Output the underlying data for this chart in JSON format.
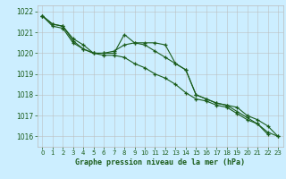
{
  "title": "Graphe pression niveau de la mer (hPa)",
  "bg_color": "#cceeff",
  "grid_color": "#bbbbbb",
  "line_color": "#1a5c1a",
  "xlim": [
    -0.5,
    23.5
  ],
  "ylim": [
    1015.5,
    1022.3
  ],
  "yticks": [
    1016,
    1017,
    1018,
    1019,
    1020,
    1021,
    1022
  ],
  "xticks": [
    0,
    1,
    2,
    3,
    4,
    5,
    6,
    7,
    8,
    9,
    10,
    11,
    12,
    13,
    14,
    15,
    16,
    17,
    18,
    19,
    20,
    21,
    22,
    23
  ],
  "series1_x": [
    0,
    1,
    2,
    3,
    4,
    5,
    6,
    7,
    8,
    9,
    10,
    11,
    12,
    13,
    14,
    15,
    16,
    17,
    18,
    19,
    20,
    21,
    22
  ],
  "series1_y": [
    1021.8,
    1021.4,
    1021.3,
    1020.7,
    1020.4,
    1020.0,
    1020.0,
    1020.1,
    1020.4,
    1020.5,
    1020.5,
    1020.5,
    1020.4,
    1019.5,
    1019.2,
    1018.0,
    1017.8,
    1017.6,
    1017.5,
    1017.2,
    1016.9,
    1016.6,
    1016.1
  ],
  "series2_x": [
    0,
    1,
    2,
    3,
    4,
    5,
    6,
    7,
    8,
    9,
    10,
    11,
    12,
    13,
    14,
    15,
    16,
    17,
    18,
    19,
    20,
    21,
    22,
    23
  ],
  "series2_y": [
    1021.8,
    1021.4,
    1021.3,
    1020.6,
    1020.2,
    1020.0,
    1020.0,
    1020.0,
    1020.9,
    1020.5,
    1020.4,
    1020.1,
    1019.8,
    1019.5,
    1019.2,
    1018.0,
    1017.8,
    1017.6,
    1017.5,
    1017.4,
    1017.0,
    1016.8,
    1016.5,
    1016.0
  ],
  "series3_x": [
    0,
    1,
    2,
    3,
    4,
    5,
    6,
    7,
    8,
    9,
    10,
    11,
    12,
    13,
    14,
    15,
    16,
    17,
    18,
    19,
    20,
    21,
    22,
    23
  ],
  "series3_y": [
    1021.8,
    1021.3,
    1021.2,
    1020.5,
    1020.2,
    1020.0,
    1019.9,
    1019.9,
    1019.8,
    1019.5,
    1019.3,
    1019.0,
    1018.8,
    1018.5,
    1018.1,
    1017.8,
    1017.7,
    1017.5,
    1017.4,
    1017.1,
    1016.8,
    1016.6,
    1016.2,
    1016.0
  ]
}
